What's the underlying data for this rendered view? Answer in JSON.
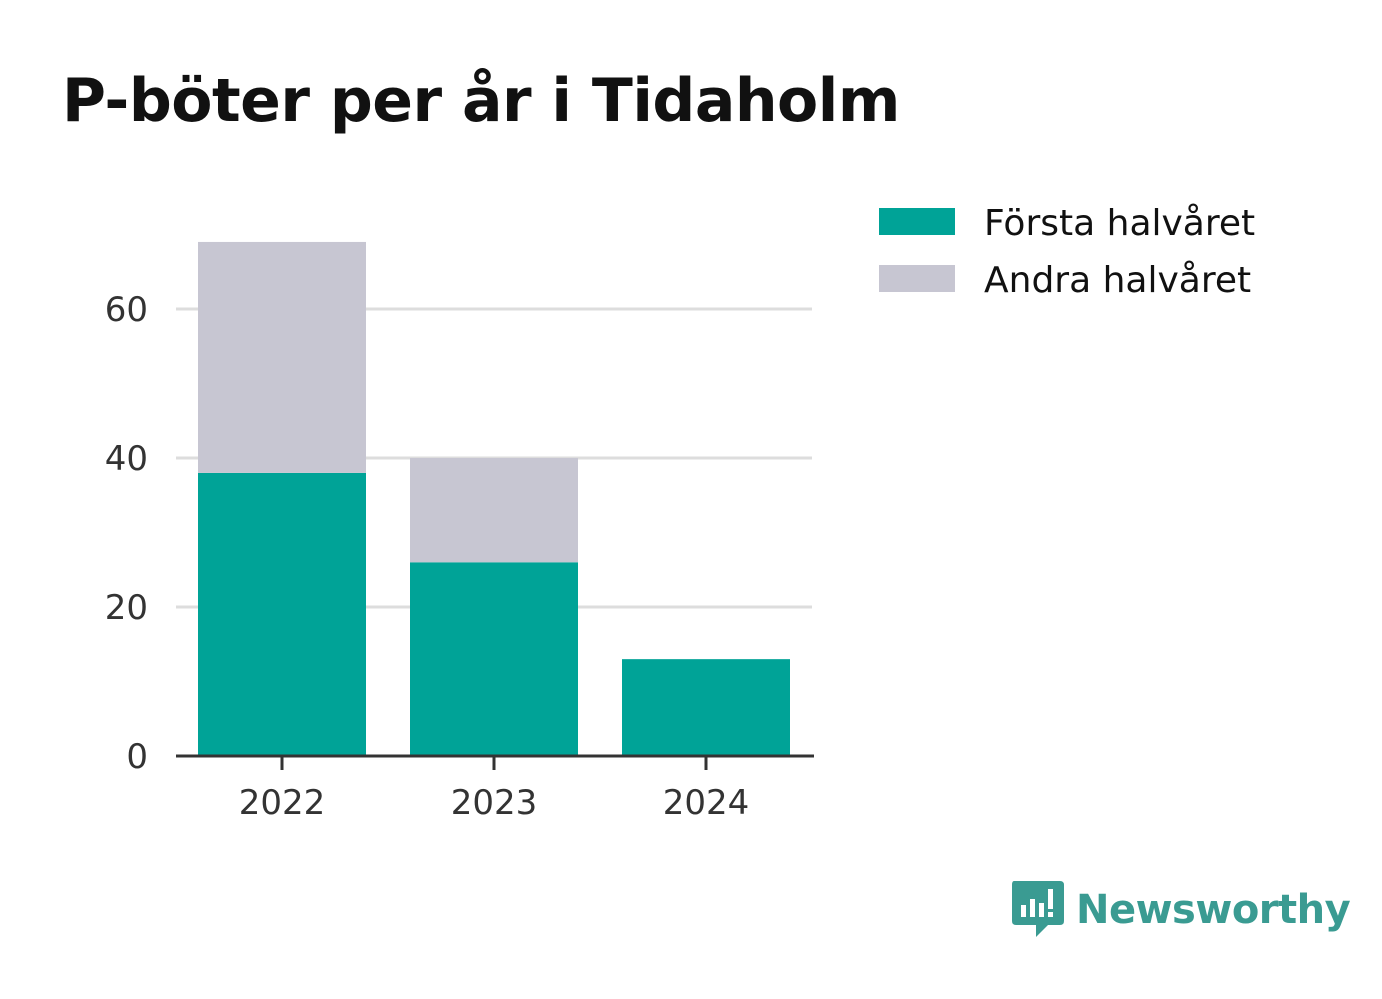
{
  "title": "P-böter per år i Tidaholm",
  "brand": {
    "name": "Newsworthy",
    "color": "#3a9b92"
  },
  "chart_data": {
    "type": "bar",
    "stacked": true,
    "title": "P-böter per år i Tidaholm",
    "xlabel": "",
    "ylabel": "",
    "categories": [
      "2022",
      "2023",
      "2024"
    ],
    "series": [
      {
        "name": "Första halvåret",
        "color": "#00a397",
        "values": [
          38,
          26,
          13
        ]
      },
      {
        "name": "Andra halvåret",
        "color": "#c7c6d2",
        "values": [
          31,
          14,
          0
        ]
      }
    ],
    "ylim": [
      0,
      70
    ],
    "yticks": [
      0,
      20,
      40,
      60
    ],
    "grid": true,
    "legend": "top-right"
  }
}
